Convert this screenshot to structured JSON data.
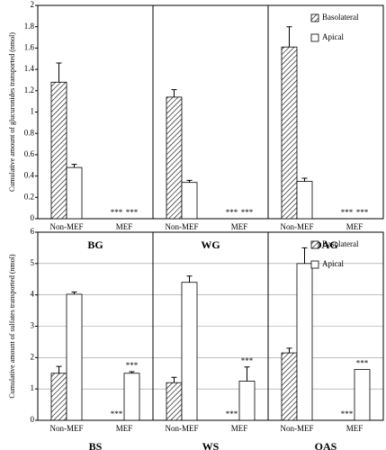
{
  "chart_data": [
    {
      "type": "bar",
      "y_label": "Cumulative amount of glucuronides transported (nmol)",
      "ylim": [
        0,
        2
      ],
      "yticks": [
        0,
        0.2,
        0.4,
        0.6,
        0.8,
        1,
        1.2,
        1.4,
        1.6,
        1.8,
        2
      ],
      "grid": false,
      "legend": "upper right",
      "categories": [
        "Non-MEF",
        "MEF"
      ],
      "groups": [
        {
          "name": "BG",
          "series": [
            {
              "name": "Basolateral",
              "pattern": "hatch",
              "color": "#ffffff",
              "values": [
                1.28,
                0
              ],
              "errors": [
                0.18,
                null
              ],
              "significance": [
                null,
                "***"
              ]
            },
            {
              "name": "Apical",
              "color": "#ffffff",
              "values": [
                0.48,
                0
              ],
              "errors": [
                0.03,
                null
              ],
              "significance": [
                null,
                "***"
              ]
            }
          ]
        },
        {
          "name": "WG",
          "series": [
            {
              "name": "Basolateral",
              "pattern": "hatch",
              "color": "#ffffff",
              "values": [
                1.14,
                0
              ],
              "errors": [
                0.07,
                null
              ],
              "significance": [
                null,
                "***"
              ]
            },
            {
              "name": "Apical",
              "color": "#ffffff",
              "values": [
                0.34,
                0
              ],
              "errors": [
                0.02,
                null
              ],
              "significance": [
                null,
                "***"
              ]
            }
          ]
        },
        {
          "name": "OAG",
          "series": [
            {
              "name": "Basolateral",
              "pattern": "hatch",
              "color": "#ffffff",
              "values": [
                1.61,
                0
              ],
              "errors": [
                0.19,
                null
              ],
              "significance": [
                null,
                "***"
              ]
            },
            {
              "name": "Apical",
              "color": "#ffffff",
              "values": [
                0.35,
                0
              ],
              "errors": [
                0.03,
                null
              ],
              "significance": [
                null,
                "***"
              ]
            }
          ]
        }
      ]
    },
    {
      "type": "bar",
      "y_label": "Cumulative amount of sulfates transported (nmol)",
      "ylim": [
        0,
        6
      ],
      "yticks": [
        0,
        1,
        2,
        3,
        4,
        5,
        6
      ],
      "grid": true,
      "legend": "upper right",
      "categories": [
        "Non-MEF",
        "MEF"
      ],
      "groups": [
        {
          "name": "BS",
          "series": [
            {
              "name": "Basolateral",
              "pattern": "hatch",
              "color": "#ffffff",
              "values": [
                1.5,
                0
              ],
              "errors": [
                0.22,
                null
              ],
              "significance": [
                null,
                "***"
              ]
            },
            {
              "name": "Apical",
              "color": "#ffffff",
              "values": [
                4.02,
                1.5
              ],
              "errors": [
                0.07,
                0.05
              ],
              "significance": [
                null,
                "***"
              ]
            }
          ]
        },
        {
          "name": "WS",
          "series": [
            {
              "name": "Basolateral",
              "pattern": "hatch",
              "color": "#ffffff",
              "values": [
                1.2,
                0
              ],
              "errors": [
                0.17,
                null
              ],
              "significance": [
                null,
                "***"
              ]
            },
            {
              "name": "Apical",
              "color": "#ffffff",
              "values": [
                4.4,
                1.25
              ],
              "errors": [
                0.2,
                0.45
              ],
              "significance": [
                null,
                "***"
              ]
            }
          ]
        },
        {
          "name": "OAS",
          "series": [
            {
              "name": "Basolateral",
              "pattern": "hatch",
              "color": "#ffffff",
              "values": [
                2.15,
                0
              ],
              "errors": [
                0.15,
                null
              ],
              "significance": [
                null,
                "***"
              ]
            },
            {
              "name": "Apical",
              "color": "#ffffff",
              "values": [
                5.0,
                1.62
              ],
              "errors": [
                0.5,
                null
              ],
              "significance": [
                null,
                "***"
              ]
            }
          ]
        }
      ]
    }
  ]
}
